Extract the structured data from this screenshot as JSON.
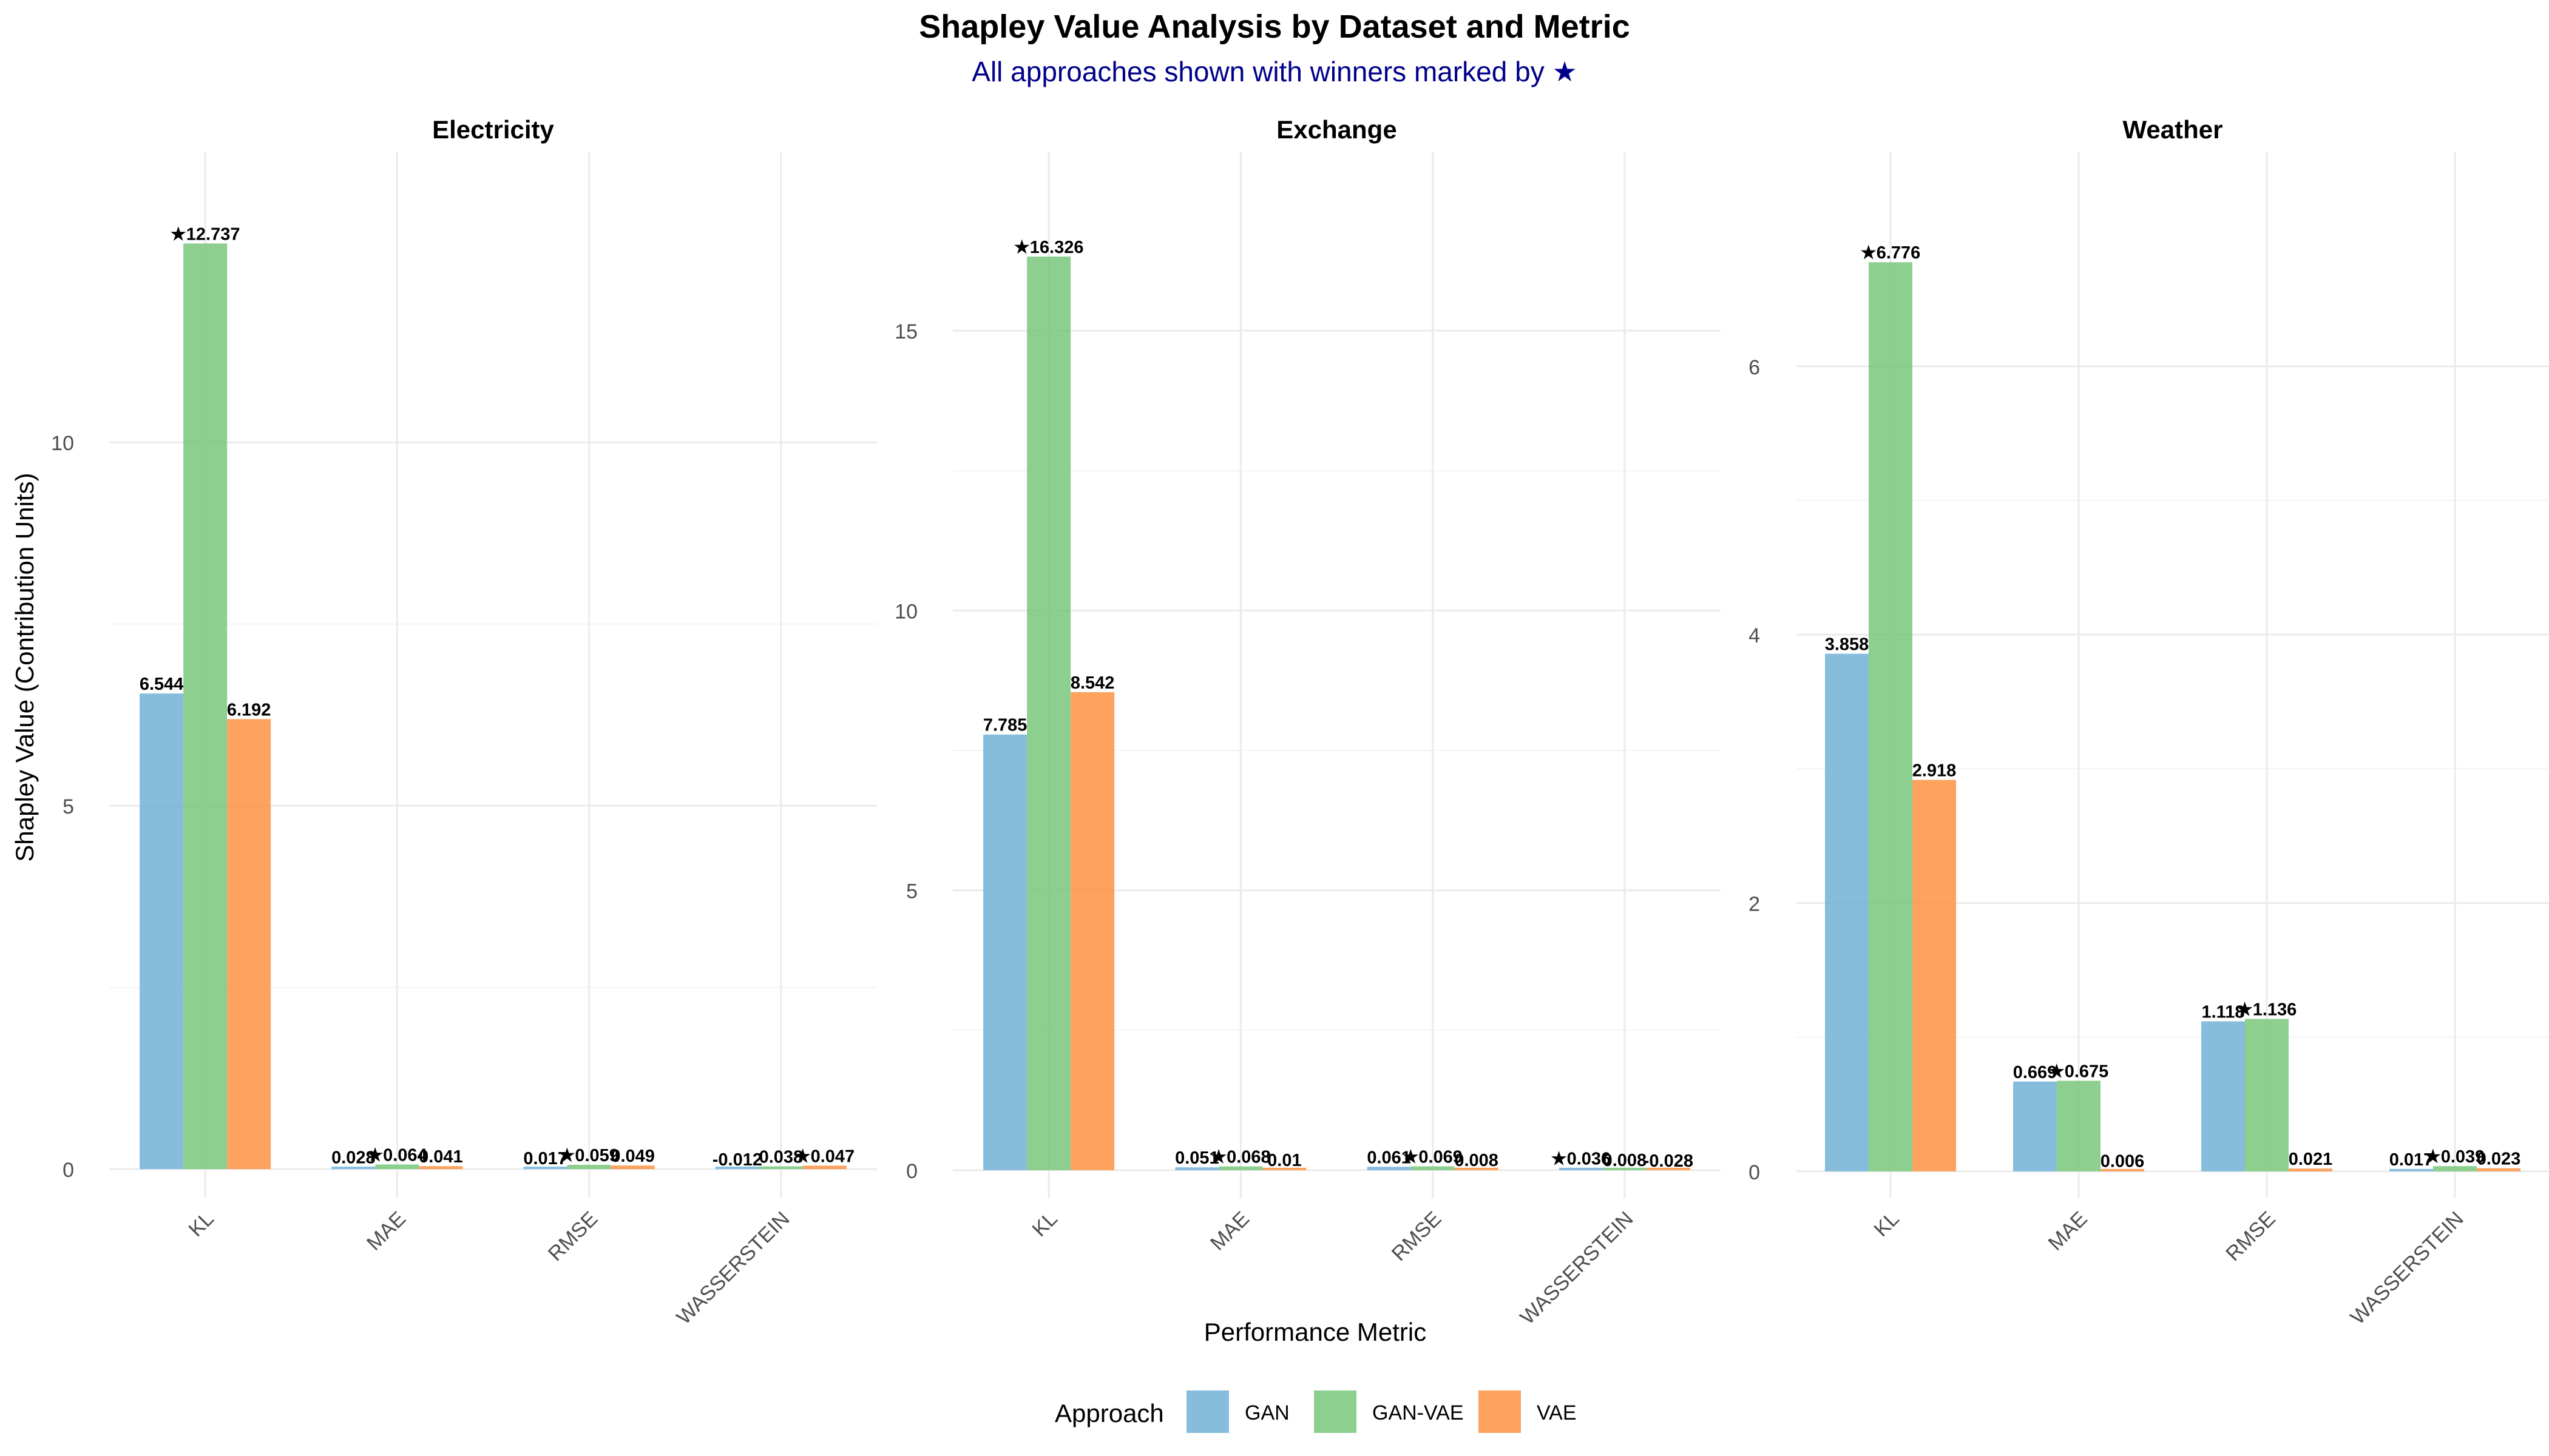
{
  "colors": {
    "GAN": "#6baed6",
    "GAN-VAE": "#74c476",
    "VAE": "#fd8d3c",
    "subtitle": "#00008b",
    "grid": "#ebebeb",
    "text": "#000000",
    "axis_text": "#4d4d4d"
  },
  "chart_data": {
    "type": "bar",
    "title": "Shapley Value Analysis by Dataset and Metric",
    "subtitle": "All approaches shown with winners marked by ★",
    "xlabel": "Performance Metric",
    "ylabel": "Shapley Value (Contribution Units)",
    "legend": {
      "title": "Approach",
      "position": "bottom",
      "entries": [
        "GAN",
        "GAN-VAE",
        "VAE"
      ]
    },
    "categories": [
      "KL",
      "MAE",
      "RMSE",
      "WASSERSTEIN"
    ],
    "grid": true,
    "winner_marker": "★",
    "panels": [
      {
        "name": "Electricity",
        "ylim": [
          -0.4,
          14.0
        ],
        "yticks": [
          0,
          5,
          10
        ],
        "series": [
          {
            "name": "GAN",
            "values": [
              6.544,
              0.028,
              0.017,
              -0.012
            ]
          },
          {
            "name": "GAN-VAE",
            "values": [
              12.737,
              0.064,
              0.059,
              0.038
            ]
          },
          {
            "name": "VAE",
            "values": [
              6.192,
              0.041,
              0.049,
              0.047
            ]
          }
        ],
        "labels": [
          [
            "6.544",
            "★12.737",
            "6.192"
          ],
          [
            "0.028",
            "★0.064",
            "0.041"
          ],
          [
            "0.017",
            "★0.059",
            "0.049"
          ],
          [
            "-0.012",
            "0.038",
            "★0.047"
          ]
        ]
      },
      {
        "name": "Exchange",
        "ylim": [
          -0.5,
          18.2
        ],
        "yticks": [
          0,
          5,
          10,
          15
        ],
        "series": [
          {
            "name": "GAN",
            "values": [
              7.785,
              0.051,
              0.061,
              0.036
            ]
          },
          {
            "name": "GAN-VAE",
            "values": [
              16.326,
              0.068,
              0.069,
              0.008
            ]
          },
          {
            "name": "VAE",
            "values": [
              8.542,
              0.01,
              0.008,
              -0.028
            ]
          }
        ],
        "labels": [
          [
            "7.785",
            "★16.326",
            "8.542"
          ],
          [
            "0.051",
            "★0.068",
            "0.01"
          ],
          [
            "0.061",
            "★0.069",
            "0.008"
          ],
          [
            "★0.036",
            "0.008",
            "-0.028"
          ]
        ]
      },
      {
        "name": "Weather",
        "ylim": [
          -0.2,
          7.6
        ],
        "yticks": [
          0,
          2,
          4,
          6
        ],
        "series": [
          {
            "name": "GAN",
            "values": [
              3.858,
              0.669,
              1.118,
              0.017
            ]
          },
          {
            "name": "GAN-VAE",
            "values": [
              6.776,
              0.675,
              1.136,
              0.039
            ]
          },
          {
            "name": "VAE",
            "values": [
              2.918,
              0.006,
              0.021,
              0.023
            ]
          }
        ],
        "labels": [
          [
            "3.858",
            "★6.776",
            "2.918"
          ],
          [
            "0.669",
            "★0.675",
            "0.006"
          ],
          [
            "1.118",
            "★1.136",
            "0.021"
          ],
          [
            "0.017",
            "★0.039",
            "0.023"
          ]
        ]
      }
    ]
  }
}
